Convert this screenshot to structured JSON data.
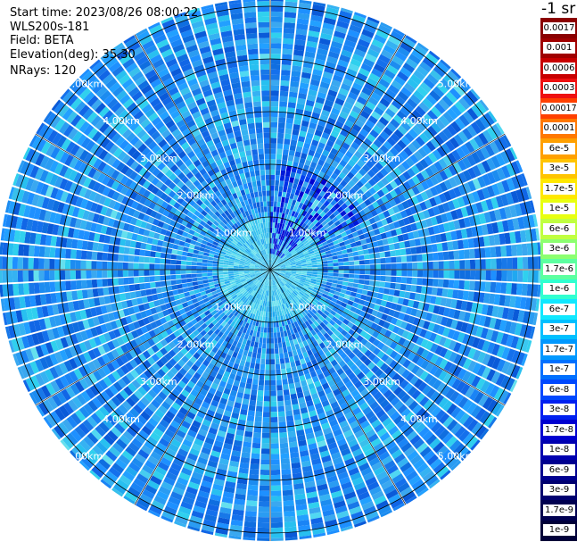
{
  "header": {
    "start_time": "Start time: 2023/08/26 08:00:22",
    "device": "WLS200s-181",
    "field": "Field: BETA",
    "elevation": "Elevation(deg): 35.30",
    "nrays": "NRays: 120"
  },
  "colorbar": {
    "unit": "-1 sr",
    "labels": [
      "0.0017",
      "0.001",
      "0.0006",
      "0.0003",
      "0.00017",
      "0.0001",
      "6e-5",
      "3e-5",
      "1.7e-5",
      "1e-5",
      "6e-6",
      "3e-6",
      "1.7e-6",
      "1e-6",
      "6e-7",
      "3e-7",
      "1.7e-7",
      "1e-7",
      "6e-8",
      "3e-8",
      "1.7e-8",
      "1e-8",
      "6e-9",
      "3e-9",
      "1.7e-9",
      "1e-9"
    ],
    "colors": [
      "#8b0000",
      "#a00000",
      "#c80000",
      "#ee1010",
      "#ff4000",
      "#ff7800",
      "#ffa000",
      "#ffc400",
      "#ffe800",
      "#e8ff10",
      "#c0ff40",
      "#8cff70",
      "#5cffa0",
      "#30ffd0",
      "#10e8ff",
      "#00c0ff",
      "#0098ff",
      "#0070ff",
      "#0048ff",
      "#0020f0",
      "#0000d0",
      "#0000b0",
      "#000090",
      "#000070",
      "#000050",
      "#00003a"
    ]
  },
  "range_rings": {
    "labels": [
      "1.00km",
      "2.00km",
      "3.00km",
      "4.00km",
      "5.00km"
    ]
  },
  "chart_data": {
    "type": "heatmap",
    "projection": "polar PPI scan",
    "field": "BETA",
    "elevation_deg": 35.3,
    "nrays": 120,
    "range_rings_km": [
      1,
      2,
      3,
      4,
      5
    ],
    "color_scale": "log",
    "color_range": [
      1e-09,
      0.0017
    ],
    "dominant_value_range": [
      3e-08,
      1e-07
    ],
    "near_field_value_range": [
      1e-07,
      1.7e-07
    ],
    "low_value_cluster": "north-northeast sector within 1.5 km, ~1e-8 to 6e-9",
    "grid": true
  }
}
